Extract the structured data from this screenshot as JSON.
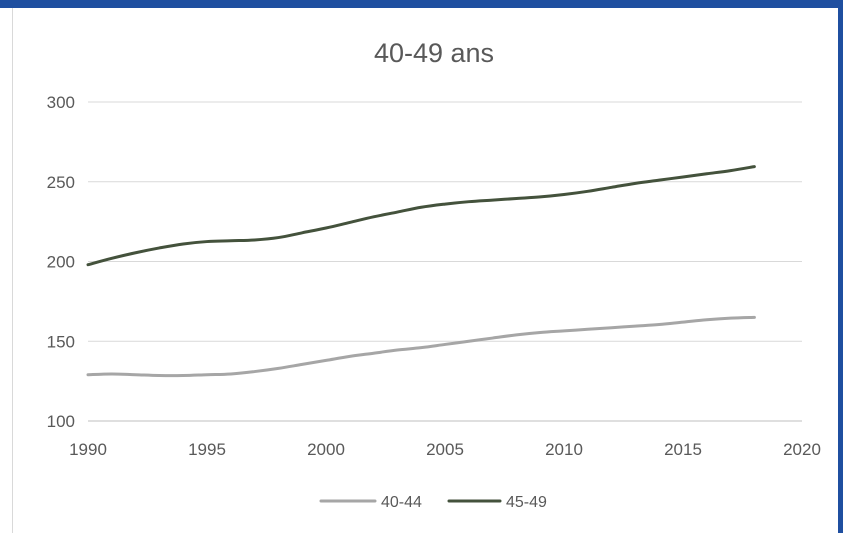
{
  "chart_data": {
    "type": "line",
    "title": "40-49 ans",
    "xlabel": "",
    "ylabel": "",
    "xlim": [
      1990,
      2020
    ],
    "ylim": [
      100,
      300
    ],
    "x_ticks": [
      1990,
      1995,
      2000,
      2005,
      2010,
      2015,
      2020
    ],
    "y_ticks": [
      100,
      150,
      200,
      250,
      300
    ],
    "x_tick_labels": [
      "1990",
      "1995",
      "2000",
      "2005",
      "2010",
      "2015",
      "2020"
    ],
    "y_tick_labels": [
      "100",
      "150",
      "200",
      "250",
      "300"
    ],
    "grid": true,
    "legend_position": "bottom",
    "series": [
      {
        "name": "40-44",
        "color": "#a6a6a6",
        "x": [
          1990,
          1991,
          1992,
          1993,
          1994,
          1995,
          1996,
          1997,
          1998,
          1999,
          2000,
          2001,
          2002,
          2003,
          2004,
          2005,
          2006,
          2007,
          2008,
          2009,
          2010,
          2011,
          2012,
          2013,
          2014,
          2015,
          2016,
          2017,
          2018
        ],
        "y": [
          129,
          129.5,
          129,
          128.5,
          128.5,
          129,
          129.5,
          131,
          133,
          135.5,
          138,
          140.5,
          142.5,
          144.5,
          146,
          148,
          150,
          152,
          154,
          155.5,
          156.5,
          157.5,
          158.5,
          159.5,
          160.5,
          162,
          163.5,
          164.5,
          165
        ]
      },
      {
        "name": "45-49",
        "color": "#44523c",
        "x": [
          1990,
          1991,
          1992,
          1993,
          1994,
          1995,
          1996,
          1997,
          1998,
          1999,
          2000,
          2001,
          2002,
          2003,
          2004,
          2005,
          2006,
          2007,
          2008,
          2009,
          2010,
          2011,
          2012,
          2013,
          2014,
          2015,
          2016,
          2017,
          2018
        ],
        "y": [
          198,
          202,
          205.5,
          208.5,
          211,
          212.5,
          213,
          213.5,
          215,
          218,
          221,
          224.5,
          228,
          231,
          234,
          236,
          237.5,
          238.5,
          239.5,
          240.5,
          242,
          244,
          246.5,
          249,
          251,
          253,
          255,
          257,
          259.5
        ]
      }
    ]
  }
}
